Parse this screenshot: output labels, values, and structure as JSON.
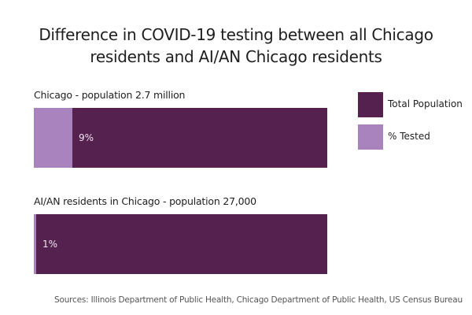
{
  "chart_data": {
    "type": "bar",
    "orientation": "horizontal-stacked-proportion",
    "title": "Difference in COVID-19 testing between all Chicago residents and AI/AN Chicago residents",
    "title_lines": [
      "Difference in COVID-19 testing between all Chicago",
      "residents and AI/AN Chicago residents"
    ],
    "xlabel": "",
    "ylabel": "",
    "legend_position": "right",
    "grid": false,
    "series": [
      {
        "name": "Total Population",
        "color": "#55214f"
      },
      {
        "name": "% Tested",
        "color": "#a983bd"
      }
    ],
    "groups": [
      {
        "label": "Chicago - population 2.7 million",
        "population": "2.7 million",
        "tested_percent": 9,
        "value_label": "9%"
      },
      {
        "label": "AI/AN residents in Chicago - population 27,000",
        "population": "27,000",
        "tested_percent": 1,
        "value_label": "1%"
      }
    ],
    "xlim": [
      0,
      100
    ],
    "source": "Sources: Illinois Department of Public Health, Chicago Department of Public Health, US Census Bureau"
  },
  "legend": [
    {
      "label": "Total Population",
      "color": "#55214f"
    },
    {
      "label": "% Tested",
      "color": "#a983bd"
    }
  ]
}
